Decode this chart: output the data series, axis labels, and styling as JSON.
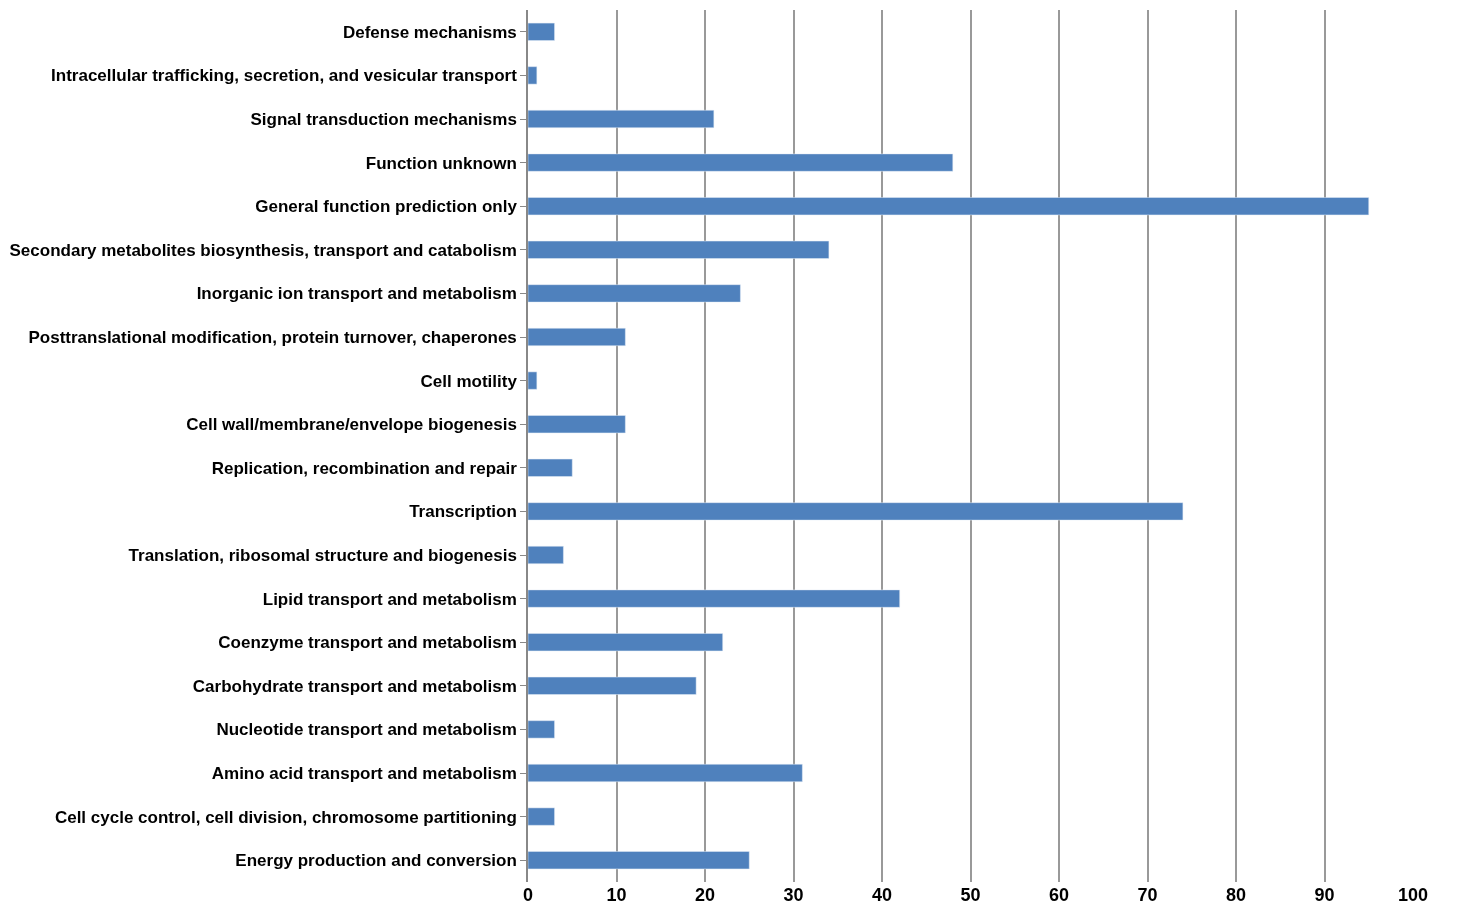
{
  "chart_data": {
    "type": "bar",
    "orientation": "horizontal",
    "categories": [
      "Defense mechanisms",
      "Intracellular trafficking, secretion, and vesicular transport",
      "Signal transduction mechanisms",
      "Function unknown",
      "General function prediction only",
      "Secondary metabolites biosynthesis, transport and catabolism",
      "Inorganic ion transport and metabolism",
      "Posttranslational modification, protein turnover, chaperones",
      "Cell motility",
      "Cell wall/membrane/envelope biogenesis",
      "Replication, recombination and repair",
      "Transcription",
      "Translation, ribosomal structure and biogenesis",
      "Lipid transport and metabolism",
      "Coenzyme transport and metabolism",
      "Carbohydrate transport and metabolism",
      "Nucleotide transport and metabolism",
      "Amino acid transport and metabolism",
      "Cell cycle control, cell division, chromosome partitioning",
      "Energy production and conversion"
    ],
    "values": [
      3,
      1,
      21,
      48,
      95,
      34,
      24,
      11,
      1,
      11,
      5,
      74,
      4,
      42,
      22,
      19,
      3,
      31,
      3,
      25
    ],
    "color": "#4f81bd",
    "xlim": [
      0,
      100
    ],
    "xticks": [
      0,
      10,
      20,
      30,
      40,
      50,
      60,
      70,
      80,
      90,
      100
    ],
    "grid": "x"
  }
}
